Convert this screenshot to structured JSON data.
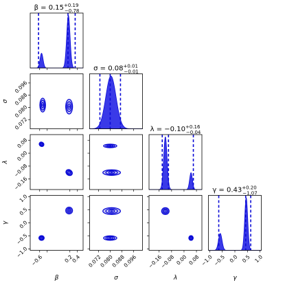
{
  "chart_data": {
    "type": "corner",
    "color": "#0b0bd6",
    "fill_color": "#3a3ae8",
    "contour_fill": "#c8c8f4",
    "parameters": [
      {
        "symbol": "β",
        "range": [
          -0.85,
          0.55
        ],
        "ticks": [
          -0.6,
          -0.4,
          0.2,
          0.4
        ],
        "tick_labels": [
          "−0.6",
          "",
          "0.2",
          "0.4"
        ],
        "title": "β = 0.15",
        "sup": "+0.19",
        "sub": "−0.78",
        "median": 0.15,
        "lower": -0.63,
        "upper": 0.34
      },
      {
        "symbol": "σ",
        "range": [
          0.066,
          0.102
        ],
        "ticks": [
          0.072,
          0.08,
          0.088,
          0.096
        ],
        "tick_labels": [
          "0.072",
          "0.080",
          "0.088",
          "0.096"
        ],
        "title": "σ = 0.08",
        "sup": "+0.01",
        "sub": "−0.01",
        "median": 0.08,
        "lower": 0.073,
        "upper": 0.087
      },
      {
        "symbol": "λ",
        "range": [
          -0.225,
          0.115
        ],
        "ticks": [
          -0.16,
          -0.08,
          0.0,
          0.08
        ],
        "tick_labels": [
          "−0.16",
          "−0.08",
          "0.00",
          "0.08"
        ],
        "title": "λ = −0.10",
        "sup": "+0.16",
        "sub": "−0.04",
        "median": -0.1,
        "lower": -0.14,
        "upper": 0.06
      },
      {
        "symbol": "γ",
        "range": [
          -1.05,
          1.05
        ],
        "ticks": [
          -1.0,
          -0.5,
          0.0,
          0.5,
          1.0
        ],
        "tick_labels": [
          "−1.0",
          "−0.5",
          "0.0",
          "0.5",
          "1.0"
        ],
        "title": "γ = 0.43",
        "sup": "+0.20",
        "sub": "−1.07",
        "median": 0.43,
        "lower": -0.64,
        "upper": 0.63
      }
    ],
    "marginals": [
      {
        "param": 0,
        "peaks": [
          {
            "mu": -0.55,
            "sd": 0.04,
            "h": 0.28
          },
          {
            "mu": 0.16,
            "sd": 0.045,
            "h": 1.0
          }
        ]
      },
      {
        "param": 1,
        "peaks": [
          {
            "mu": 0.0805,
            "sd": 0.0035,
            "h": 1.0
          }
        ]
      },
      {
        "param": 2,
        "peaks": [
          {
            "mu": -0.12,
            "sd": 0.011,
            "h": 1.0
          },
          {
            "mu": 0.045,
            "sd": 0.009,
            "h": 0.32
          }
        ]
      },
      {
        "param": 3,
        "peaks": [
          {
            "mu": -0.58,
            "sd": 0.07,
            "h": 0.32
          },
          {
            "mu": 0.45,
            "sd": 0.06,
            "h": 1.0
          }
        ]
      }
    ],
    "joints": [
      {
        "x": 0,
        "y": 1,
        "blobs": [
          {
            "cx": -0.52,
            "cy": 0.0815,
            "rx": [
              0.03,
              0.055,
              0.075
            ],
            "ry": [
              0.0018,
              0.0032,
              0.0045
            ],
            "rot": 0
          },
          {
            "cx": 0.18,
            "cy": 0.0805,
            "rx": [
              0.035,
              0.065,
              0.09
            ],
            "ry": [
              0.0018,
              0.0032,
              0.0048
            ],
            "rot": 0
          }
        ]
      },
      {
        "x": 0,
        "y": 2,
        "blobs": [
          {
            "cx": -0.55,
            "cy": 0.055,
            "rx": [
              0.025,
              0.045,
              0.065
            ],
            "ry": [
              0.006,
              0.01,
              0.013
            ],
            "rot": 35
          },
          {
            "cx": 0.18,
            "cy": -0.12,
            "rx": [
              0.035,
              0.065,
              0.09
            ],
            "ry": [
              0.008,
              0.012,
              0.017
            ],
            "rot": 35
          }
        ]
      },
      {
        "x": 0,
        "y": 3,
        "blobs": [
          {
            "cx": 0.18,
            "cy": 0.47,
            "rx": [
              0.03,
              0.06,
              0.09
            ],
            "ry": [
              0.05,
              0.09,
              0.13
            ],
            "rot": 0
          },
          {
            "cx": -0.55,
            "cy": -0.58,
            "rx": [
              0.03,
              0.05,
              0.07
            ],
            "ry": [
              0.04,
              0.07,
              0.09
            ],
            "rot": 0
          }
        ]
      },
      {
        "x": 1,
        "y": 2,
        "blobs": [
          {
            "cx": 0.081,
            "cy": -0.12,
            "rx": [
              0.002,
              0.004,
              0.006
            ],
            "ry": [
              0.007,
              0.012,
              0.017
            ],
            "rot": 0
          },
          {
            "cx": 0.08,
            "cy": 0.045,
            "rx": [
              0.0018,
              0.003,
              0.0045
            ],
            "ry": [
              0.005,
              0.008,
              0.011
            ],
            "rot": 0
          }
        ]
      },
      {
        "x": 1,
        "y": 3,
        "blobs": [
          {
            "cx": 0.081,
            "cy": 0.45,
            "rx": [
              0.002,
              0.004,
              0.006
            ],
            "ry": [
              0.05,
              0.09,
              0.13
            ],
            "rot": 0
          },
          {
            "cx": 0.08,
            "cy": -0.58,
            "rx": [
              0.0018,
              0.003,
              0.0045
            ],
            "ry": [
              0.04,
              0.065,
              0.085
            ],
            "rot": 0
          }
        ]
      },
      {
        "x": 2,
        "y": 3,
        "blobs": [
          {
            "cx": -0.12,
            "cy": 0.45,
            "rx": [
              0.01,
              0.017,
              0.024
            ],
            "ry": [
              0.05,
              0.09,
              0.13
            ],
            "rot": 0
          },
          {
            "cx": 0.045,
            "cy": -0.58,
            "rx": [
              0.006,
              0.01,
              0.014
            ],
            "ry": [
              0.04,
              0.065,
              0.09
            ],
            "rot": 0
          }
        ]
      }
    ]
  }
}
